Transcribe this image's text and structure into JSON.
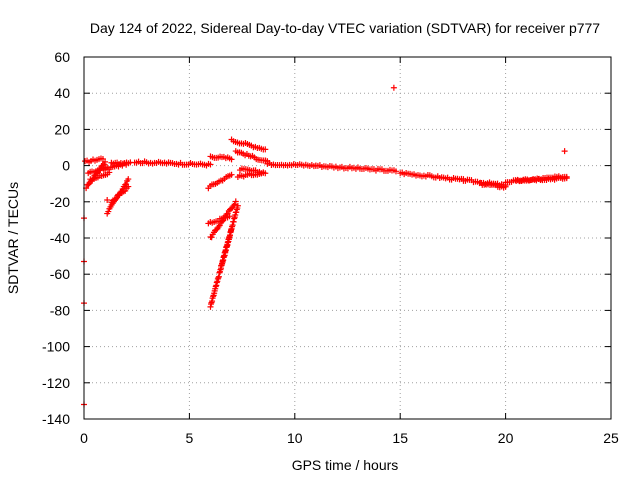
{
  "chart_data": {
    "type": "scatter",
    "title": "Day 124 of 2022, Sidereal Day-to-day VTEC variation (SDTVAR) for receiver p777",
    "xlabel": "GPS time / hours",
    "ylabel": "SDTVAR / TECUs",
    "xlim": [
      0,
      25
    ],
    "ylim": [
      -140,
      60
    ],
    "xticks": [
      0,
      5,
      10,
      15,
      20,
      25
    ],
    "yticks": [
      -140,
      -120,
      -100,
      -80,
      -60,
      -40,
      -20,
      0,
      20,
      40,
      60
    ],
    "grid": true,
    "marker": "plus",
    "color": "#ff0000",
    "segments": [
      {
        "x0": 0.05,
        "x1": 0.9,
        "y0": 2,
        "y1": 4
      },
      {
        "x0": 0.1,
        "x1": 1.0,
        "y0": -12,
        "y1": 2
      },
      {
        "x0": 0.2,
        "x1": 1.1,
        "y0": -4,
        "y1": -1
      },
      {
        "x0": 0.3,
        "x1": 1.2,
        "y0": -8,
        "y1": -4
      },
      {
        "x0": 1.1,
        "x1": 2.1,
        "y0": -26,
        "y1": -8
      },
      {
        "x0": 1.3,
        "x1": 2.1,
        "y0": -20,
        "y1": -12
      },
      {
        "x0": 1.0,
        "x1": 2.0,
        "y0": -2,
        "y1": 1
      },
      {
        "x0": 1.3,
        "x1": 2.2,
        "y0": 1,
        "y1": 2
      },
      {
        "x0": 2.4,
        "x1": 6.0,
        "y0": 2,
        "y1": 0.5
      },
      {
        "x0": 6.0,
        "x1": 7.0,
        "y0": -78,
        "y1": -35
      },
      {
        "x0": 6.5,
        "x1": 7.3,
        "y0": -56,
        "y1": -22
      },
      {
        "x0": 6.0,
        "x1": 7.2,
        "y0": -40,
        "y1": -20
      },
      {
        "x0": 5.9,
        "x1": 6.9,
        "y0": -32,
        "y1": -28
      },
      {
        "x0": 5.9,
        "x1": 7.0,
        "y0": -12,
        "y1": -5
      },
      {
        "x0": 6.0,
        "x1": 7.0,
        "y0": 5,
        "y1": 4
      },
      {
        "x0": 7.0,
        "x1": 8.6,
        "y0": 14,
        "y1": 9
      },
      {
        "x0": 7.2,
        "x1": 8.7,
        "y0": 8,
        "y1": 2
      },
      {
        "x0": 7.4,
        "x1": 8.6,
        "y0": -2,
        "y1": -4
      },
      {
        "x0": 7.3,
        "x1": 8.5,
        "y0": -6,
        "y1": -4
      },
      {
        "x0": 8.7,
        "x1": 11.0,
        "y0": 1,
        "y1": 0
      },
      {
        "x0": 11.0,
        "x1": 14.8,
        "y0": 0,
        "y1": -3
      },
      {
        "x0": 15.0,
        "x1": 18.0,
        "y0": -4,
        "y1": -8
      },
      {
        "x0": 18.0,
        "x1": 20.0,
        "y0": -8,
        "y1": -11
      },
      {
        "x0": 18.8,
        "x1": 20.0,
        "y0": -10,
        "y1": -12
      },
      {
        "x0": 20.0,
        "x1": 22.9,
        "y0": -9,
        "y1": -6
      },
      {
        "x0": 20.5,
        "x1": 22.9,
        "y0": -8,
        "y1": -7
      }
    ],
    "outliers": [
      {
        "x": 0.0,
        "y": -29
      },
      {
        "x": 0.0,
        "y": -53
      },
      {
        "x": 0.0,
        "y": -76
      },
      {
        "x": 0.0,
        "y": -132
      },
      {
        "x": 14.7,
        "y": 43
      },
      {
        "x": 22.8,
        "y": 8
      },
      {
        "x": 1.1,
        "y": -19
      }
    ]
  }
}
